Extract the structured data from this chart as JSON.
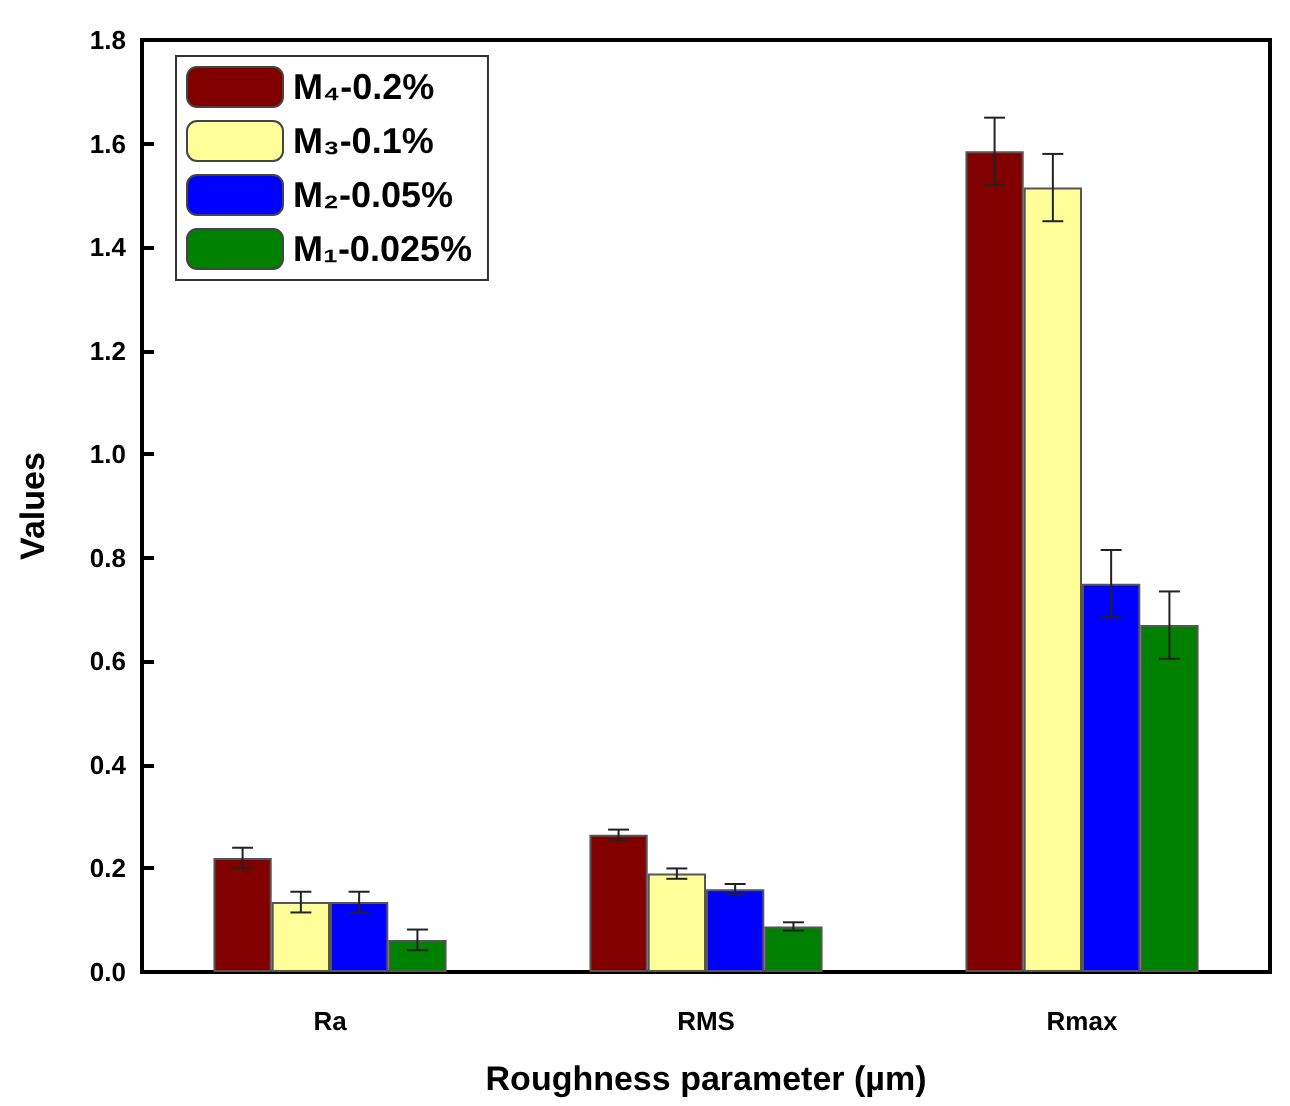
{
  "chart_data": {
    "type": "bar",
    "xlabel": "Roughness parameter (µm)",
    "ylabel": "Values",
    "categories": [
      "Ra",
      "RMS",
      "Rmax"
    ],
    "series": [
      {
        "name": "M₄-0.2%",
        "color": "#800000",
        "values": [
          0.22,
          0.265,
          1.585
        ],
        "errors": [
          0.02,
          0.01,
          0.065
        ]
      },
      {
        "name": "M₃-0.1%",
        "color": "#ffff99",
        "values": [
          0.135,
          0.19,
          1.515
        ],
        "errors": [
          0.02,
          0.01,
          0.065
        ]
      },
      {
        "name": "M₂-0.05%",
        "color": "#0000ff",
        "values": [
          0.135,
          0.16,
          0.75
        ],
        "errors": [
          0.02,
          0.01,
          0.065
        ]
      },
      {
        "name": "M₁-0.025%",
        "color": "#008000",
        "values": [
          0.062,
          0.088,
          0.67
        ],
        "errors": [
          0.02,
          0.008,
          0.065
        ]
      }
    ],
    "ylim": [
      0,
      1.8
    ],
    "yticks": [
      {
        "value": 0,
        "label": "0.0"
      },
      {
        "value": 0.2,
        "label": "0.2"
      },
      {
        "value": 0.4,
        "label": "0.4"
      },
      {
        "value": 0.6,
        "label": "0.6"
      },
      {
        "value": 0.8,
        "label": "0.8"
      },
      {
        "value": 1,
        "label": "1.0"
      },
      {
        "value": 1.2,
        "label": "1.2"
      },
      {
        "value": 1.4,
        "label": "1.4"
      },
      {
        "value": 1.6,
        "label": "1.6"
      },
      {
        "value": 1.8,
        "label": "1.8"
      }
    ],
    "grid": false,
    "legend": "top left"
  }
}
